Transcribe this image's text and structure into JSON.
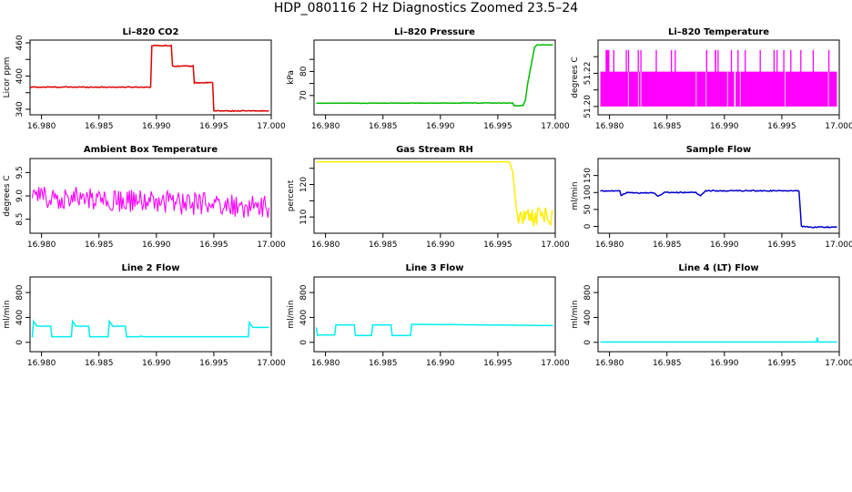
{
  "figure_title": "HDP_080116  2 Hz Diagnostics Zoomed 23.5–24",
  "chart_data": [
    {
      "type": "line",
      "title": "Li–820 CO2",
      "xlabel": "",
      "ylabel": "Licor ppm",
      "xlim": [
        16.979,
        17.0
      ],
      "ylim": [
        330,
        465
      ],
      "xticks": [
        16.98,
        16.985,
        16.99,
        16.995,
        17.0
      ],
      "xtick_labels": [
        "16.980",
        "16.985",
        "16.990",
        "16.995",
        "17.000"
      ],
      "yticks": [
        340,
        370,
        400,
        430,
        460
      ],
      "ytick_labels": [
        "340",
        "",
        "400",
        "",
        "460"
      ],
      "color": "#dd0000",
      "noise": 0.8,
      "series": [
        {
          "x": [
            16.979,
            16.9895,
            16.9896,
            16.9913,
            16.9914,
            16.9932,
            16.9933,
            16.9949,
            16.995,
            16.9978,
            16.998,
            16.9998
          ],
          "y": [
            380,
            380,
            455,
            455,
            418,
            418,
            388,
            388,
            337,
            337,
            337,
            337
          ]
        }
      ]
    },
    {
      "type": "line",
      "title": "Li–820 Pressure",
      "xlabel": "",
      "ylabel": "kPa",
      "xlim": [
        16.979,
        17.0
      ],
      "ylim": [
        62,
        93
      ],
      "xticks": [
        16.98,
        16.985,
        16.99,
        16.995,
        17.0
      ],
      "xtick_labels": [
        "16.980",
        "16.985",
        "16.990",
        "16.995",
        "17.000"
      ],
      "yticks": [
        70,
        75,
        80,
        85
      ],
      "ytick_labels": [
        "70",
        "",
        "80",
        ""
      ],
      "color": "#00bb00",
      "noise": 0.1,
      "series": [
        {
          "x": [
            16.9792,
            16.994,
            16.9963,
            16.9964,
            16.9972,
            16.9974,
            16.9976,
            16.998,
            16.9982,
            16.9984,
            16.9986,
            16.9998
          ],
          "y": [
            66.8,
            66.9,
            66.9,
            65.8,
            65.8,
            68,
            75,
            85,
            90,
            91,
            91,
            91
          ]
        }
      ]
    },
    {
      "type": "line",
      "title": "Li–820 Temperature",
      "xlabel": "",
      "ylabel": "degrees C",
      "xlim": [
        16.979,
        17.0
      ],
      "ylim": [
        51.195,
        51.24
      ],
      "xticks": [
        16.98,
        16.985,
        16.99,
        16.995,
        17.0
      ],
      "xtick_labels": [
        "16.980",
        "16.985",
        "16.990",
        "16.995",
        "17.000"
      ],
      "yticks": [
        51.2,
        51.21,
        51.22,
        51.23
      ],
      "ytick_labels": [
        "51.20",
        "",
        "51.22",
        ""
      ],
      "color": "#ff00ff",
      "band": [
        51.2,
        51.221
      ],
      "spike_top": 51.234,
      "series": [
        {
          "x": [
            16.9792,
            16.9998
          ],
          "y": [
            51.2,
            51.221
          ]
        }
      ]
    },
    {
      "type": "line",
      "title": "Ambient Box Temperature",
      "xlabel": "",
      "ylabel": "degrees C",
      "xlim": [
        16.979,
        17.0
      ],
      "ylim": [
        8.2,
        9.8
      ],
      "xticks": [
        16.98,
        16.985,
        16.99,
        16.995,
        17.0
      ],
      "xtick_labels": [
        "16.980",
        "16.985",
        "16.990",
        "16.995",
        "17.000"
      ],
      "yticks": [
        8.5,
        9.0,
        9.5
      ],
      "ytick_labels": [
        "8.5",
        "9.0",
        "9.5"
      ],
      "color": "#ff00ff",
      "noise": 0.25,
      "series": [
        {
          "x": [
            16.9792,
            16.9998
          ],
          "y": [
            9.0,
            8.75
          ]
        }
      ]
    },
    {
      "type": "line",
      "title": "Gas Stream RH",
      "xlabel": "",
      "ylabel": "percent",
      "xlim": [
        16.979,
        17.0
      ],
      "ylim": [
        105,
        128
      ],
      "xticks": [
        16.98,
        16.985,
        16.99,
        16.995,
        17.0
      ],
      "xtick_labels": [
        "16.980",
        "16.985",
        "16.990",
        "16.995",
        "17.000"
      ],
      "yticks": [
        110,
        115,
        120,
        125
      ],
      "ytick_labels": [
        "110",
        "",
        "120",
        ""
      ],
      "color": "#ffee00",
      "series": [
        {
          "x": [
            16.9792,
            16.996,
            16.9963,
            16.9966,
            16.9968,
            16.997,
            16.998,
            16.9998
          ],
          "y": [
            127,
            127,
            124,
            113,
            108,
            110,
            110,
            110
          ]
        }
      ]
    },
    {
      "type": "line",
      "title": "Sample Flow",
      "xlabel": "",
      "ylabel": "ml/min",
      "xlim": [
        16.979,
        17.0
      ],
      "ylim": [
        -20,
        200
      ],
      "xticks": [
        16.98,
        16.985,
        16.99,
        16.995,
        17.0
      ],
      "xtick_labels": [
        "16.980",
        "16.985",
        "16.990",
        "16.995",
        "17.000"
      ],
      "yticks": [
        0,
        50,
        100,
        150
      ],
      "ytick_labels": [
        "0",
        "50",
        "100",
        "150"
      ],
      "color": "#0000cc",
      "noise": 1.5,
      "series": [
        {
          "x": [
            16.9792,
            16.9809,
            16.981,
            16.9815,
            16.9838,
            16.9842,
            16.9848,
            16.9875,
            16.9879,
            16.9884,
            16.9965,
            16.9967,
            16.9975,
            16.9998
          ],
          "y": [
            105,
            105,
            92,
            99,
            99,
            90,
            100,
            100,
            90,
            105,
            105,
            0,
            -2,
            -2
          ]
        }
      ]
    },
    {
      "type": "line",
      "title": "Line 2 Flow",
      "xlabel": "",
      "ylabel": "ml/min",
      "xlim": [
        16.979,
        17.0
      ],
      "ylim": [
        -150,
        1050
      ],
      "xticks": [
        16.98,
        16.985,
        16.99,
        16.995,
        17.0
      ],
      "xtick_labels": [
        "16.980",
        "16.985",
        "16.990",
        "16.995",
        "17.000"
      ],
      "yticks": [
        0,
        400,
        800
      ],
      "ytick_labels": [
        "0",
        "400",
        "800"
      ],
      "color": "#00eeee",
      "series": [
        {
          "x": [
            16.9792,
            16.9793,
            16.9796,
            16.9808,
            16.9809,
            16.9826,
            16.9827,
            16.983,
            16.9841,
            16.9842,
            16.9858,
            16.9859,
            16.9862,
            16.9873,
            16.9874,
            16.9885,
            16.9886,
            16.9889,
            16.998,
            16.9981,
            16.9984,
            16.9998
          ],
          "y": [
            80,
            340,
            260,
            260,
            90,
            90,
            340,
            260,
            260,
            90,
            90,
            340,
            260,
            260,
            90,
            90,
            100,
            90,
            90,
            320,
            240,
            240
          ]
        }
      ]
    },
    {
      "type": "line",
      "title": "Line 3 Flow",
      "xlabel": "",
      "ylabel": "ml/min",
      "xlim": [
        16.979,
        17.0
      ],
      "ylim": [
        -150,
        1050
      ],
      "xticks": [
        16.98,
        16.985,
        16.99,
        16.995,
        17.0
      ],
      "xtick_labels": [
        "16.980",
        "16.985",
        "16.990",
        "16.995",
        "17.000"
      ],
      "yticks": [
        0,
        400,
        800
      ],
      "ytick_labels": [
        "0",
        "400",
        "800"
      ],
      "color": "#00eeee",
      "series": [
        {
          "x": [
            16.9792,
            16.9793,
            16.9794,
            16.9808,
            16.9809,
            16.9825,
            16.9826,
            16.984,
            16.9841,
            16.9857,
            16.9858,
            16.9874,
            16.9875,
            16.9998
          ],
          "y": [
            240,
            110,
            120,
            120,
            280,
            280,
            110,
            110,
            280,
            280,
            110,
            110,
            290,
            270
          ]
        }
      ]
    },
    {
      "type": "line",
      "title": "Line 4 (LT) Flow",
      "xlabel": "",
      "ylabel": "ml/min",
      "xlim": [
        16.979,
        17.0
      ],
      "ylim": [
        -150,
        1050
      ],
      "xticks": [
        16.98,
        16.985,
        16.99,
        16.995,
        17.0
      ],
      "xtick_labels": [
        "16.980",
        "16.985",
        "16.990",
        "16.995",
        "17.000"
      ],
      "yticks": [
        0,
        400,
        800
      ],
      "ytick_labels": [
        "0",
        "400",
        "800"
      ],
      "color": "#00eeee",
      "series": [
        {
          "x": [
            16.9792,
            16.998,
            16.9981,
            16.99815,
            16.9982,
            16.9998
          ],
          "y": [
            5,
            5,
            80,
            5,
            5,
            5
          ]
        }
      ]
    }
  ]
}
